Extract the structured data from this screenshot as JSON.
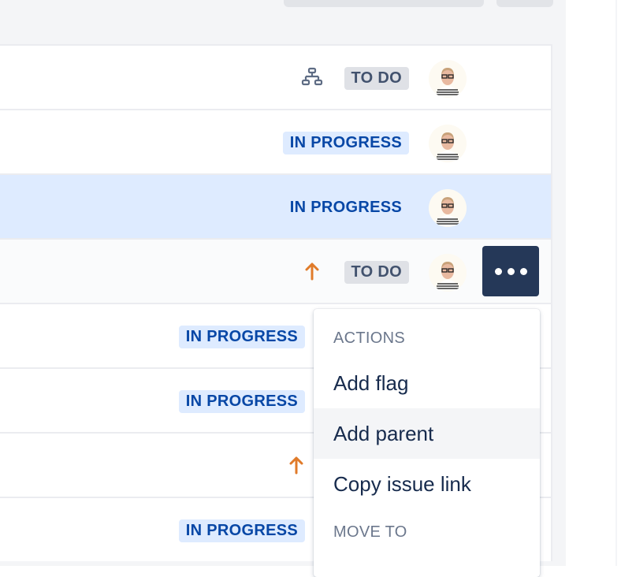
{
  "rows": [
    {
      "icon": "hierarchy-icon",
      "status": "TO DO",
      "status_type": "todo"
    },
    {
      "icon": null,
      "status": "IN PROGRESS",
      "status_type": "inprogress"
    },
    {
      "icon": null,
      "status": "IN PROGRESS",
      "status_type": "inprogress",
      "selected": true
    },
    {
      "icon": "arrow-up-icon",
      "status": "TO DO",
      "status_type": "todo",
      "hovered": true
    },
    {
      "icon": null,
      "status": "IN PROGRESS",
      "status_type": "inprogress"
    },
    {
      "icon": null,
      "status": "IN PROGRESS",
      "status_type": "inprogress"
    },
    {
      "icon": "arrow-up-icon",
      "status": null
    },
    {
      "icon": null,
      "status": "IN PROGRESS",
      "status_type": "inprogress"
    }
  ],
  "menu": {
    "actions_header": "ACTIONS",
    "items": [
      "Add flag",
      "Add parent",
      "Copy issue link"
    ],
    "hovered_item": "Add parent",
    "move_header": "MOVE TO"
  },
  "colors": {
    "selected_row": "#deebff",
    "more_button": "#253858",
    "priority_high": "#e07b2a",
    "todo_badge": "#dfe1e6",
    "inprogress_badge": "#deebff"
  }
}
